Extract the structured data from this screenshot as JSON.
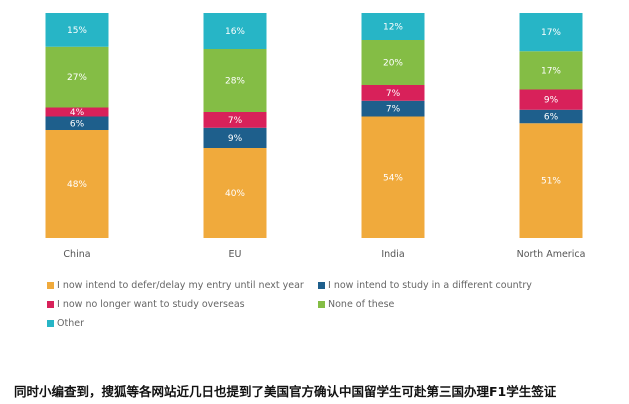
{
  "chart_data": {
    "type": "bar",
    "stacked": true,
    "categories": [
      "China",
      "EU",
      "India",
      "North America"
    ],
    "series": [
      {
        "name": "I now intend to defer/delay my entry until next year",
        "color": "#F0AA3C",
        "values": [
          48,
          40,
          54,
          51
        ]
      },
      {
        "name": "I now intend to study in a different country",
        "color": "#1E5F8C",
        "values": [
          6,
          9,
          7,
          6
        ]
      },
      {
        "name": "I now no longer want to study overseas",
        "color": "#D8215A",
        "values": [
          4,
          7,
          7,
          9
        ]
      },
      {
        "name": "None of these",
        "color": "#84BD45",
        "values": [
          27,
          28,
          20,
          17
        ]
      },
      {
        "name": "Other",
        "color": "#27B5C6",
        "values": [
          15,
          16,
          12,
          17
        ]
      }
    ],
    "value_suffix": "%",
    "ylim": [
      0,
      100
    ],
    "grid": false,
    "legend_position": "bottom",
    "title": "",
    "xlabel": "",
    "ylabel": ""
  },
  "caption": "同时小编查到，搜狐等各网站近几日也提到了美国官方确认中国留学生可赴第三国办理F1学生签证"
}
